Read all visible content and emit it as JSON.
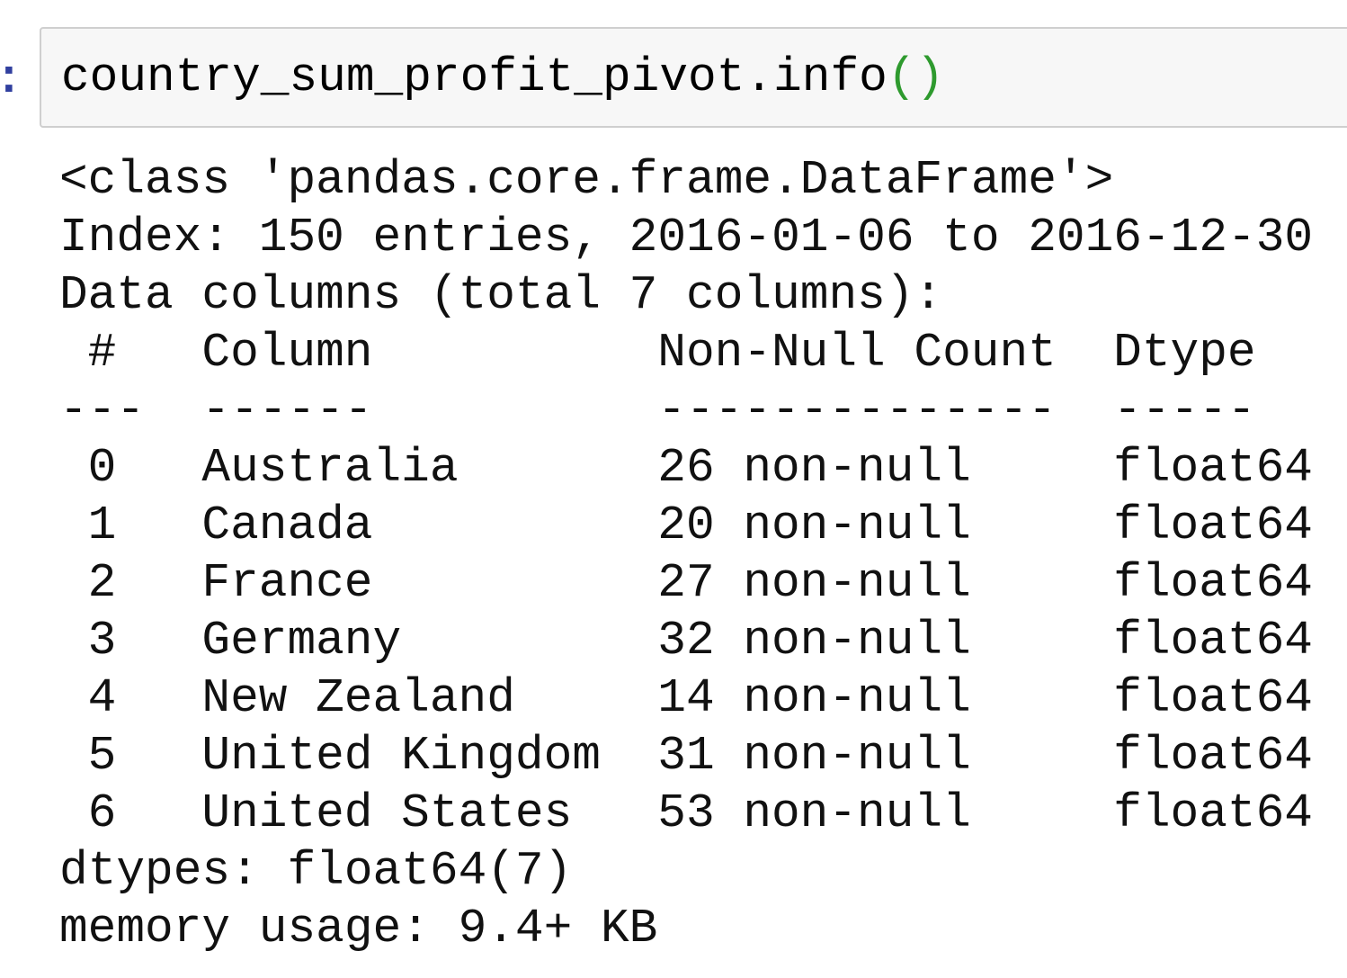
{
  "prompt": ":",
  "input": {
    "code": "country_sum_profit_pivot.info",
    "parens": "()"
  },
  "output": {
    "class_line": "<class 'pandas.core.frame.DataFrame'>",
    "index_line": "Index: 150 entries, 2016-01-06 to 2016-12-30",
    "columns_line": "Data columns (total 7 columns):",
    "table": {
      "header": [
        "#",
        "Column",
        "Non-Null Count",
        "Dtype"
      ],
      "separator": [
        "---",
        "------",
        "--------------",
        "-----"
      ],
      "rows": [
        [
          "0",
          "Australia",
          "26 non-null",
          "float64"
        ],
        [
          "1",
          "Canada",
          "20 non-null",
          "float64"
        ],
        [
          "2",
          "France",
          "27 non-null",
          "float64"
        ],
        [
          "3",
          "Germany",
          "32 non-null",
          "float64"
        ],
        [
          "4",
          "New Zealand",
          "14 non-null",
          "float64"
        ],
        [
          "5",
          "United Kingdom",
          "31 non-null",
          "float64"
        ],
        [
          "6",
          "United States",
          "53 non-null",
          "float64"
        ]
      ]
    },
    "dtypes_line": "dtypes: float64(7)",
    "memory_line": "memory usage: 9.4+ KB"
  }
}
